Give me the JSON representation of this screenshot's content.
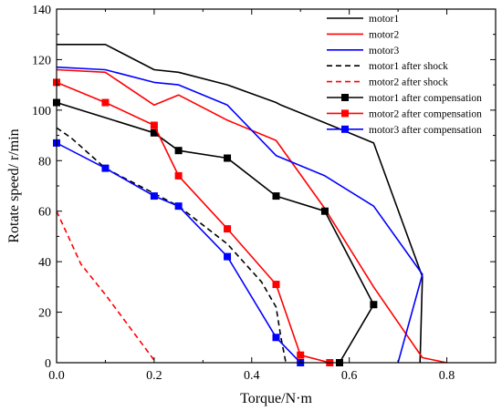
{
  "chart_data": {
    "type": "line",
    "xlabel": "Torque/N·m",
    "ylabel": "Rotate speed/ r/min",
    "xlim": [
      0,
      0.9
    ],
    "ylim": [
      0,
      140
    ],
    "x_ticks": [
      0.0,
      0.2,
      0.4,
      0.6,
      0.8
    ],
    "x_tick_labels": [
      "0.0",
      "0.2",
      "0.4",
      "0.6",
      "0.8"
    ],
    "y_ticks": [
      0,
      20,
      40,
      60,
      80,
      100,
      120,
      140
    ],
    "y_tick_labels": [
      "0",
      "20",
      "40",
      "60",
      "80",
      "100",
      "120",
      "140"
    ],
    "grid": false,
    "legend_position": "top-right",
    "series": [
      {
        "name": "motor1",
        "color": "#000000",
        "dash": "solid",
        "marker": "none",
        "points": [
          [
            0,
            126
          ],
          [
            0.1,
            126
          ],
          [
            0.2,
            116
          ],
          [
            0.25,
            115
          ],
          [
            0.35,
            110
          ],
          [
            0.45,
            103
          ],
          [
            0.46,
            102
          ],
          [
            0.55,
            95
          ],
          [
            0.65,
            87
          ],
          [
            0.75,
            34
          ],
          [
            0.745,
            0
          ]
        ]
      },
      {
        "name": "motor2",
        "color": "#ff0000",
        "dash": "solid",
        "marker": "none",
        "points": [
          [
            0,
            116
          ],
          [
            0.1,
            115
          ],
          [
            0.2,
            102
          ],
          [
            0.25,
            106
          ],
          [
            0.35,
            96
          ],
          [
            0.45,
            88
          ],
          [
            0.55,
            61
          ],
          [
            0.65,
            30
          ],
          [
            0.75,
            2
          ],
          [
            0.8,
            0
          ]
        ]
      },
      {
        "name": "motor3",
        "color": "#0000ff",
        "dash": "solid",
        "marker": "none",
        "points": [
          [
            0,
            117
          ],
          [
            0.1,
            116
          ],
          [
            0.2,
            111
          ],
          [
            0.25,
            110
          ],
          [
            0.35,
            102
          ],
          [
            0.45,
            82
          ],
          [
            0.55,
            74
          ],
          [
            0.65,
            62
          ],
          [
            0.75,
            35
          ],
          [
            0.7,
            0
          ]
        ]
      },
      {
        "name": "motor1 after shock",
        "color": "#000000",
        "dash": "dashed",
        "marker": "none",
        "points": [
          [
            0,
            93
          ],
          [
            0.03,
            89
          ],
          [
            0.1,
            77
          ],
          [
            0.2,
            67
          ],
          [
            0.25,
            62
          ],
          [
            0.35,
            47
          ],
          [
            0.42,
            32
          ],
          [
            0.45,
            22
          ],
          [
            0.46,
            10
          ],
          [
            0.47,
            0
          ]
        ]
      },
      {
        "name": "motor2 after shock",
        "color": "#ff0000",
        "dash": "dashed",
        "marker": "none",
        "points": [
          [
            0,
            60
          ],
          [
            0.05,
            39
          ],
          [
            0.1,
            27
          ],
          [
            0.2,
            1
          ]
        ]
      },
      {
        "name": "motor1 after compensation",
        "color": "#000000",
        "dash": "solid",
        "marker": "square",
        "points": [
          [
            0,
            103
          ],
          [
            0.2,
            91
          ],
          [
            0.25,
            84
          ],
          [
            0.35,
            81
          ],
          [
            0.45,
            66
          ],
          [
            0.55,
            60
          ],
          [
            0.65,
            23
          ],
          [
            0.58,
            0
          ]
        ]
      },
      {
        "name": "motor2 after compensation",
        "color": "#ff0000",
        "dash": "solid",
        "marker": "square",
        "points": [
          [
            0,
            111
          ],
          [
            0.1,
            103
          ],
          [
            0.2,
            94
          ],
          [
            0.25,
            74
          ],
          [
            0.35,
            53
          ],
          [
            0.45,
            31
          ],
          [
            0.5,
            3
          ],
          [
            0.56,
            0
          ]
        ]
      },
      {
        "name": "motor3 after compensation",
        "color": "#0000ff",
        "dash": "solid",
        "marker": "square",
        "points": [
          [
            0,
            87
          ],
          [
            0.1,
            77
          ],
          [
            0.2,
            66
          ],
          [
            0.25,
            62
          ],
          [
            0.35,
            42
          ],
          [
            0.45,
            10
          ],
          [
            0.5,
            0
          ]
        ]
      }
    ]
  }
}
